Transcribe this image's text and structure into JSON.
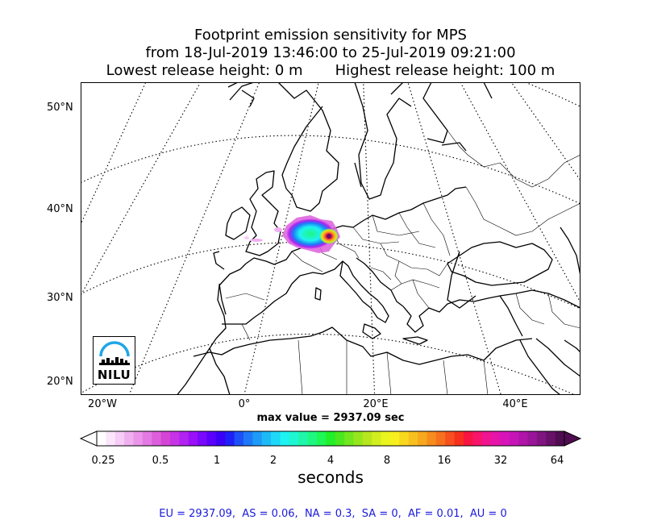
{
  "title": {
    "line1": "Footprint emission sensitivity for MPS",
    "line2": "from 18-Jul-2019 13:46:00 to 25-Jul-2019 09:21:00",
    "line3": "Lowest release height: 0 m       Highest release height: 100 m"
  },
  "map": {
    "projection": "conic",
    "lat_labels": [
      "50°N",
      "40°N",
      "30°N",
      "20°N"
    ],
    "lon_labels": [
      "20°W",
      "0°",
      "20°E",
      "40°E"
    ],
    "gridlines": "dotted",
    "logo_text": "NILU"
  },
  "max_value": "max value = 2937.09 sec",
  "colorbar": {
    "tick_labels": [
      "0.25",
      "0.5",
      "1",
      "2",
      "4",
      "8",
      "16",
      "32",
      "64"
    ],
    "unit_label": "seconds",
    "colors": [
      "#ffffff",
      "#fbe6fb",
      "#f7ccf7",
      "#f0b0f0",
      "#ea94ea",
      "#e37ae3",
      "#dc5edc",
      "#d544d5",
      "#c634e6",
      "#b222f0",
      "#9910f8",
      "#7a08fc",
      "#5a00fc",
      "#3a00f8",
      "#1f1ff7",
      "#1e50f7",
      "#1e78f7",
      "#1e9af7",
      "#1ebaf7",
      "#1ed8f7",
      "#1ef2f2",
      "#1ef7d2",
      "#1ef7aa",
      "#1ef780",
      "#1ef755",
      "#20f028",
      "#4ae61e",
      "#72e61e",
      "#96e61e",
      "#b6e61e",
      "#d2ee1e",
      "#eaf41e",
      "#f7f01e",
      "#f7d81e",
      "#f7c01e",
      "#f7a81e",
      "#f78c1e",
      "#f7701e",
      "#f7501e",
      "#f7301e",
      "#f71440",
      "#f7146a",
      "#f01490",
      "#e614a8",
      "#d814b8",
      "#c614b8",
      "#b014a8",
      "#981498",
      "#801480",
      "#681068",
      "#500c50"
    ]
  },
  "footer": "EU = 2937.09,  AS = 0.06,  NA = 0.3,  SA = 0,  AF = 0.01,  AU = 0"
}
